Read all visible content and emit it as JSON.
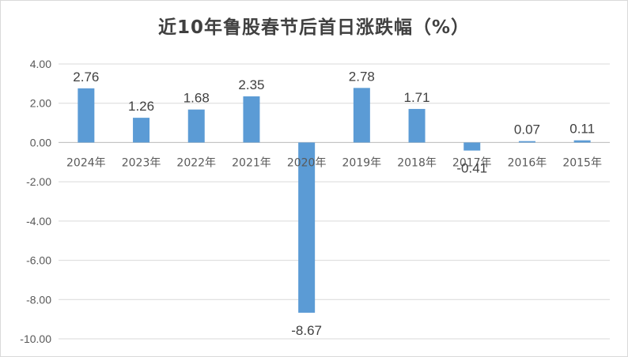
{
  "chart_data": {
    "type": "bar",
    "title": "近10年鲁股春节后首日涨跌幅（%）",
    "categories": [
      "2024年",
      "2023年",
      "2022年",
      "2021年",
      "2020年",
      "2019年",
      "2018年",
      "2017年",
      "2016年",
      "2015年"
    ],
    "values": [
      2.76,
      1.26,
      1.68,
      2.35,
      -8.67,
      2.78,
      1.71,
      -0.41,
      0.07,
      0.11
    ],
    "data_labels": [
      "2.76",
      "1.26",
      "1.68",
      "2.35",
      "-8.67",
      "2.78",
      "1.71",
      "-0.41",
      "0.07",
      "0.11"
    ],
    "ylim": [
      -10,
      4
    ],
    "yticks": [
      "4.00",
      "2.00",
      "0.00",
      "-2.00",
      "-4.00",
      "-6.00",
      "-8.00",
      "-10.00"
    ],
    "grid": true,
    "legend": "none",
    "bar_color": "#5b9bd5"
  }
}
